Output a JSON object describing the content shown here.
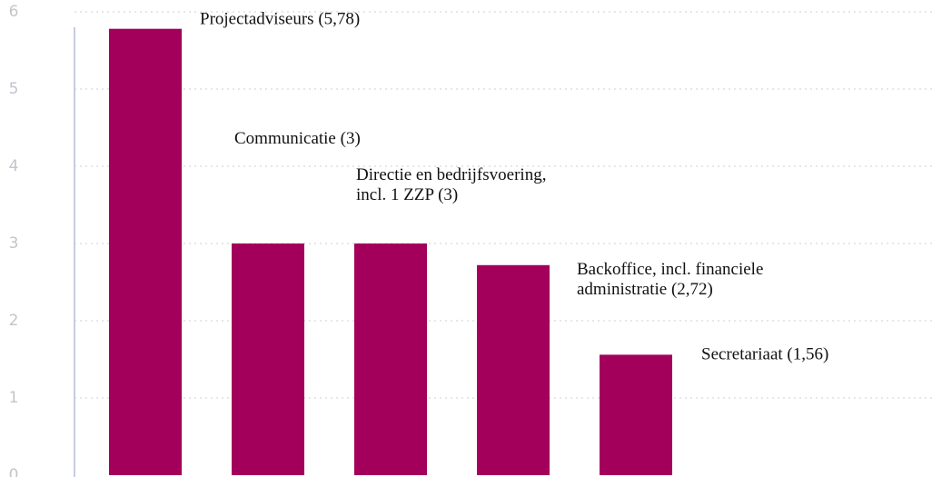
{
  "chart_data": {
    "type": "bar",
    "values": [
      5.78,
      3,
      3,
      2.72,
      1.56
    ],
    "value_labels": [
      "Projectadviseurs (5,78)",
      "Communicatie (3)",
      "Directie en bedrijfsvoering,\nincl. 1 ZZP (3)",
      "Backoffice, incl. financiele\nadministratie (2,72)",
      "Secretariaat (1,56)"
    ],
    "color": "#a3005c",
    "ylim": [
      0,
      6
    ],
    "yticks": [
      0,
      1,
      2,
      3,
      4,
      5,
      6
    ],
    "grid": true
  }
}
